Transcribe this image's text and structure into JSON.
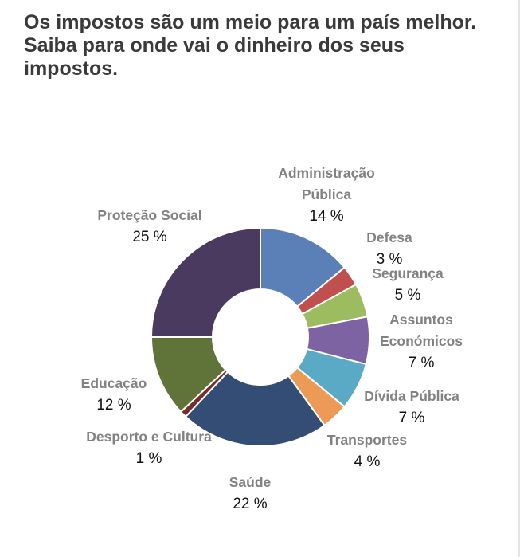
{
  "chart_data": {
    "type": "pie",
    "variant": "donut",
    "title": "Os impostos são um meio para um país melhor. Saiba para onde vai o dinheiro dos seus impostos.",
    "slices": [
      {
        "label": "Administração Pública",
        "value": 14,
        "value_label": "14 %",
        "color": "#5b80b8"
      },
      {
        "label": "Defesa",
        "value": 3,
        "value_label": "3 %",
        "color": "#bf504d"
      },
      {
        "label": "Segurança",
        "value": 5,
        "value_label": "5 %",
        "color": "#9dbb5f"
      },
      {
        "label": "Assuntos Económicos",
        "value": 7,
        "value_label": "7 %",
        "color": "#7e63a2"
      },
      {
        "label": "Dívida Pública",
        "value": 7,
        "value_label": "7 %",
        "color": "#5aaac5"
      },
      {
        "label": "Transportes",
        "value": 4,
        "value_label": "4 %",
        "color": "#ec9a55"
      },
      {
        "label": "Saúde",
        "value": 22,
        "value_label": "22 %",
        "color": "#344d74"
      },
      {
        "label": "Desporto e Cultura",
        "value": 1,
        "value_label": "1 %",
        "color": "#772f2d"
      },
      {
        "label": "Educação",
        "value": 12,
        "value_label": "12 %",
        "color": "#60743a"
      },
      {
        "label": "Proteção Social",
        "value": 25,
        "value_label": "25 %",
        "color": "#4a3a5f"
      }
    ],
    "start": "top",
    "direction": "clockwise",
    "legend": "none"
  }
}
